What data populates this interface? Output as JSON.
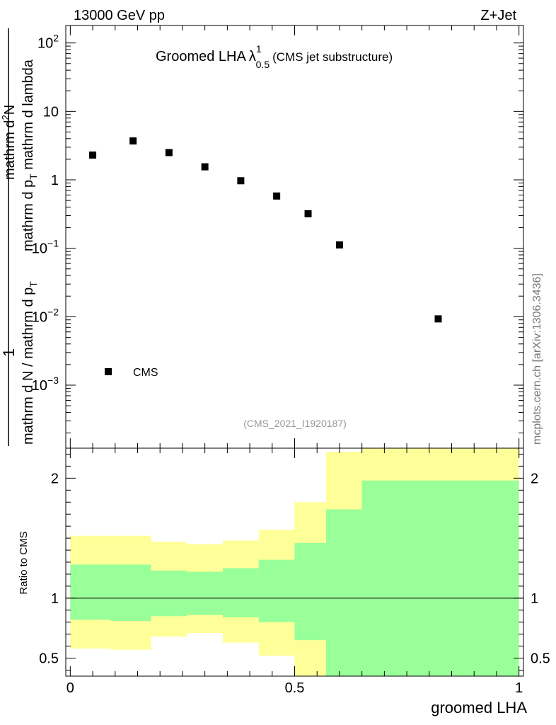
{
  "header": {
    "energy": "13000 GeV pp",
    "process": "Z+Jet",
    "credit": "mcplots.cern.ch [arXiv:1306.3436]"
  },
  "chart_data": [
    {
      "type": "scatter",
      "title_main": "Groomed LHA",
      "title_symbol": "λ",
      "title_sup": "1",
      "title_sub": "0.5",
      "title_suffix": "(CMS jet substructure)",
      "ylabel_top": "1",
      "ylabel_bottom": "mathrm d N / mathrm d p",
      "ylabel_bottom_sub": "T",
      "ylabel_numerator": "mathrm d",
      "ylabel_numerator_sup": "2",
      "ylabel_numerator_tail": "N",
      "ylabel_denominator": "mathrm d p",
      "ylabel_denominator_sub": "T",
      "ylabel_denominator_tail": " mathrm d lambda",
      "yscale": "log",
      "ylim": [
        0.00012,
        180
      ],
      "xlim": [
        -0.01,
        1.01
      ],
      "y_ticks": [
        {
          "value": 0.001,
          "base": "10",
          "exp": "−3"
        },
        {
          "value": 0.01,
          "base": "10",
          "exp": "−2"
        },
        {
          "value": 0.1,
          "base": "10",
          "exp": "−1"
        },
        {
          "value": 1,
          "base": "1",
          "exp": ""
        },
        {
          "value": 10,
          "base": "10",
          "exp": ""
        },
        {
          "value": 100,
          "base": "10",
          "exp": "2"
        }
      ],
      "series": [
        {
          "name": "CMS",
          "marker": "square",
          "x": [
            0.05,
            0.14,
            0.22,
            0.3,
            0.38,
            0.46,
            0.53,
            0.6,
            0.82
          ],
          "y": [
            2.3,
            3.7,
            2.5,
            1.55,
            0.97,
            0.58,
            0.32,
            0.112,
            0.0093
          ]
        }
      ],
      "legend": {
        "position": "bottom-left",
        "label": "CMS"
      },
      "watermark": "(CMS_2021_I1920187)"
    },
    {
      "type": "area",
      "ylabel": "Ratio to CMS",
      "xlabel": "groomed LHA",
      "xlim": [
        -0.01,
        1.01
      ],
      "ylim": [
        0.35,
        2.25
      ],
      "x_ticks": [
        {
          "value": 0,
          "label": "0"
        },
        {
          "value": 0.5,
          "label": "0.5"
        },
        {
          "value": 1,
          "label": "1"
        }
      ],
      "y_ticks": [
        {
          "value": 0.5,
          "label": "0.5"
        },
        {
          "value": 1,
          "label": "1"
        },
        {
          "value": 2,
          "label": "2"
        }
      ],
      "reference_line": 1,
      "bin_edges": [
        0,
        0.09,
        0.18,
        0.26,
        0.34,
        0.42,
        0.5,
        0.57,
        0.65,
        1.0
      ],
      "bands": [
        {
          "name": "yellow",
          "color": "#ffff99",
          "lower": [
            0.58,
            0.57,
            0.68,
            0.71,
            0.63,
            0.52,
            0.35,
            0.35,
            0.35
          ],
          "upper": [
            1.52,
            1.52,
            1.47,
            1.45,
            1.48,
            1.57,
            1.8,
            2.22,
            2.25
          ]
        },
        {
          "name": "green",
          "color": "#99ff99",
          "lower": [
            0.82,
            0.81,
            0.85,
            0.86,
            0.84,
            0.8,
            0.65,
            0.35,
            0.35
          ],
          "upper": [
            1.28,
            1.28,
            1.23,
            1.22,
            1.25,
            1.32,
            1.46,
            1.74,
            1.98
          ]
        }
      ]
    }
  ]
}
